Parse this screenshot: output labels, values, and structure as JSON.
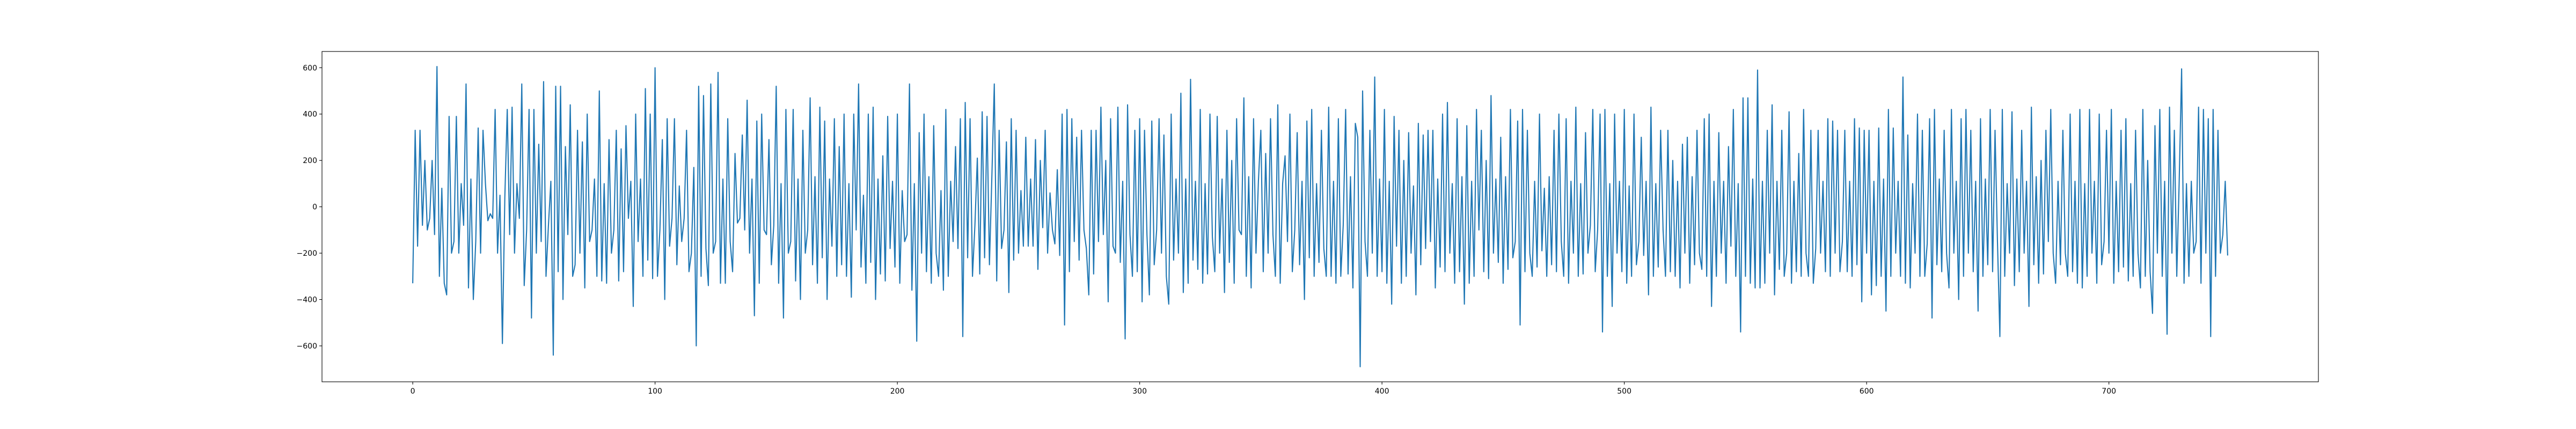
{
  "chart_data": {
    "type": "line",
    "color": "#1f77b4",
    "xlim": [
      -37.45,
      786.45
    ],
    "xticks": [
      0,
      100,
      200,
      300,
      400,
      500,
      600,
      700
    ],
    "ylim": [
      -755,
      670
    ],
    "yticks": [
      {
        "value": -600,
        "label": "−600"
      },
      {
        "value": -400,
        "label": "−400"
      },
      {
        "value": -200,
        "label": "−200"
      },
      0,
      200,
      400,
      600
    ],
    "values": [
      -330,
      330,
      -170,
      330,
      -80,
      200,
      -100,
      -50,
      200,
      -120,
      605,
      -300,
      80,
      -330,
      -380,
      390,
      -200,
      -150,
      390,
      -200,
      100,
      -80,
      530,
      -350,
      120,
      -400,
      -150,
      340,
      -200,
      330,
      100,
      -60,
      -30,
      -50,
      420,
      -200,
      50,
      -590,
      40,
      420,
      -120,
      430,
      -200,
      100,
      -50,
      530,
      -340,
      -100,
      420,
      -480,
      420,
      -200,
      270,
      -150,
      540,
      -300,
      -80,
      110,
      -640,
      520,
      -280,
      520,
      -400,
      260,
      -120,
      440,
      -300,
      -250,
      330,
      -200,
      280,
      -350,
      400,
      -150,
      -100,
      120,
      -300,
      500,
      -320,
      100,
      -330,
      290,
      -200,
      -100,
      330,
      -320,
      250,
      -280,
      350,
      -50,
      110,
      -430,
      400,
      -150,
      120,
      -300,
      510,
      -230,
      400,
      -310,
      600,
      -300,
      -100,
      290,
      -400,
      380,
      -170,
      -50,
      380,
      -250,
      90,
      -150,
      -50,
      330,
      -280,
      -200,
      170,
      -600,
      520,
      -300,
      480,
      -180,
      -340,
      530,
      -200,
      -150,
      580,
      -330,
      120,
      -330,
      380,
      -150,
      -280,
      230,
      -70,
      -50,
      310,
      -100,
      460,
      -200,
      120,
      -470,
      370,
      -330,
      400,
      -100,
      -120,
      290,
      -250,
      -80,
      520,
      -330,
      100,
      -480,
      420,
      -200,
      -150,
      420,
      -320,
      120,
      -400,
      330,
      -200,
      -100,
      470,
      -250,
      130,
      -330,
      430,
      -220,
      370,
      -400,
      120,
      -170,
      380,
      -300,
      260,
      -250,
      400,
      -300,
      100,
      -390,
      400,
      -100,
      530,
      -260,
      50,
      -330,
      400,
      -240,
      430,
      -400,
      120,
      -290,
      220,
      -320,
      390,
      -180,
      110,
      -260,
      400,
      -330,
      70,
      -150,
      -120,
      530,
      -360,
      100,
      -580,
      320,
      -200,
      400,
      -280,
      130,
      -330,
      350,
      -200,
      -300,
      70,
      -360,
      420,
      -300,
      110,
      -150,
      260,
      -180,
      380,
      -560,
      450,
      -220,
      380,
      -300,
      -80,
      210,
      -290,
      410,
      -220,
      390,
      -250,
      130,
      530,
      -320,
      330,
      -180,
      -100,
      280,
      -370,
      380,
      -230,
      330,
      -200,
      70,
      -170,
      300,
      -170,
      120,
      -170,
      290,
      -270,
      200,
      -90,
      330,
      -200,
      60,
      -100,
      -160,
      160,
      -210,
      400,
      -510,
      420,
      -280,
      380,
      -150,
      300,
      -230,
      330,
      -100,
      -180,
      -380,
      330,
      -290,
      330,
      -150,
      430,
      -120,
      200,
      -410,
      380,
      -170,
      -200,
      430,
      -240,
      110,
      -570,
      440,
      -120,
      -300,
      330,
      -280,
      380,
      -410,
      330,
      -120,
      -380,
      370,
      -250,
      -100,
      380,
      -200,
      310,
      -300,
      -420,
      400,
      -230,
      120,
      -200,
      490,
      -370,
      120,
      -330,
      550,
      -230,
      110,
      -270,
      420,
      -330,
      100,
      -290,
      400,
      -130,
      -280,
      390,
      -200,
      120,
      -370,
      330,
      -240,
      200,
      -330,
      380,
      -100,
      -120,
      470,
      -300,
      130,
      -350,
      380,
      -200,
      110,
      330,
      -280,
      230,
      -200,
      380,
      -120,
      -300,
      440,
      -330,
      100,
      220,
      -150,
      400,
      -280,
      -100,
      320,
      -250,
      110,
      -400,
      370,
      -220,
      420,
      -300,
      100,
      -240,
      330,
      -180,
      -300,
      430,
      -300,
      110,
      -330,
      380,
      -300,
      -80,
      420,
      -290,
      130,
      -350,
      360,
      300,
      -690,
      500,
      -150,
      -300,
      330,
      -200,
      560,
      -300,
      120,
      -280,
      420,
      -330,
      110,
      -420,
      390,
      -170,
      330,
      -330,
      200,
      -300,
      320,
      -200,
      90,
      -380,
      360,
      -250,
      310,
      -180,
      330,
      -150,
      330,
      -350,
      120,
      -260,
      400,
      -280,
      450,
      -200,
      100,
      -330,
      380,
      -280,
      130,
      -420,
      350,
      -330,
      110,
      -300,
      420,
      -100,
      330,
      -280,
      200,
      -310,
      480,
      -200,
      120,
      -240,
      300,
      -330,
      130,
      -270,
      420,
      -220,
      -150,
      370,
      -510,
      420,
      -280,
      330,
      -200,
      -300,
      110,
      -260,
      400,
      -190,
      80,
      -300,
      130,
      -250,
      330,
      -280,
      400,
      -150,
      -300,
      380,
      -330,
      110,
      -200,
      430,
      -300,
      100,
      -290,
      320,
      -200,
      -80,
      420,
      -280,
      -100,
      400,
      -540,
      420,
      -300,
      100,
      -430,
      400,
      -200,
      110,
      -280,
      420,
      -330,
      90,
      -300,
      400,
      -250,
      -150,
      300,
      -210,
      110,
      -380,
      430,
      -300,
      100,
      -260,
      330,
      -100,
      -300,
      330,
      -280,
      200,
      -300,
      110,
      -350,
      270,
      -200,
      300,
      -330,
      130,
      -250,
      330,
      -200,
      -270,
      380,
      -300,
      400,
      -430,
      110,
      -300,
      320,
      -200,
      110,
      -330,
      260,
      -170,
      420,
      -300,
      100,
      -540,
      470,
      -300,
      470,
      -330,
      120,
      -350,
      590,
      -350,
      110,
      -330,
      330,
      -200,
      440,
      -380,
      110,
      -270,
      330,
      -300,
      -200,
      410,
      -330,
      110,
      -280,
      230,
      -300,
      420,
      -200,
      -300,
      330,
      -330,
      -180,
      330,
      -200,
      110,
      -280,
      380,
      -300,
      370,
      -200,
      330,
      -280,
      -150,
      330,
      -280,
      110,
      -300,
      380,
      -250,
      340,
      -410,
      330,
      -200,
      330,
      -380,
      110,
      -340,
      340,
      -300,
      120,
      -450,
      420,
      -300,
      340,
      -200,
      110,
      -300,
      560,
      -330,
      310,
      -350,
      100,
      -200,
      400,
      -300,
      330,
      -300,
      -160,
      380,
      -480,
      420,
      -250,
      120,
      -280,
      330,
      -200,
      -350,
      420,
      -200,
      110,
      -400,
      380,
      -300,
      420,
      -200,
      330,
      -280,
      110,
      -450,
      380,
      -300,
      120,
      -250,
      420,
      -280,
      330,
      -150,
      -560,
      420,
      -300,
      100,
      -200,
      410,
      -340,
      120,
      -280,
      330,
      -200,
      110,
      -430,
      430,
      -250,
      130,
      -330,
      200,
      -290,
      330,
      -150,
      420,
      -200,
      -330,
      110,
      -250,
      330,
      -200,
      -300,
      400,
      -280,
      110,
      -330,
      420,
      -350,
      100,
      -300,
      420,
      -200,
      110,
      -330,
      400,
      -250,
      -150,
      330,
      -200,
      420,
      -330,
      110,
      -280,
      330,
      -260,
      380,
      -320,
      100,
      -300,
      330,
      -200,
      -350,
      420,
      -300,
      200,
      -280,
      -460,
      350,
      -200,
      420,
      -300,
      110,
      -550,
      430,
      -200,
      330,
      -300,
      110,
      595,
      -330,
      100,
      -300,
      110,
      -200,
      -150,
      430,
      -330,
      420,
      -200,
      380,
      -560,
      420,
      -300,
      330,
      -200,
      -120,
      110,
      -210
    ]
  }
}
